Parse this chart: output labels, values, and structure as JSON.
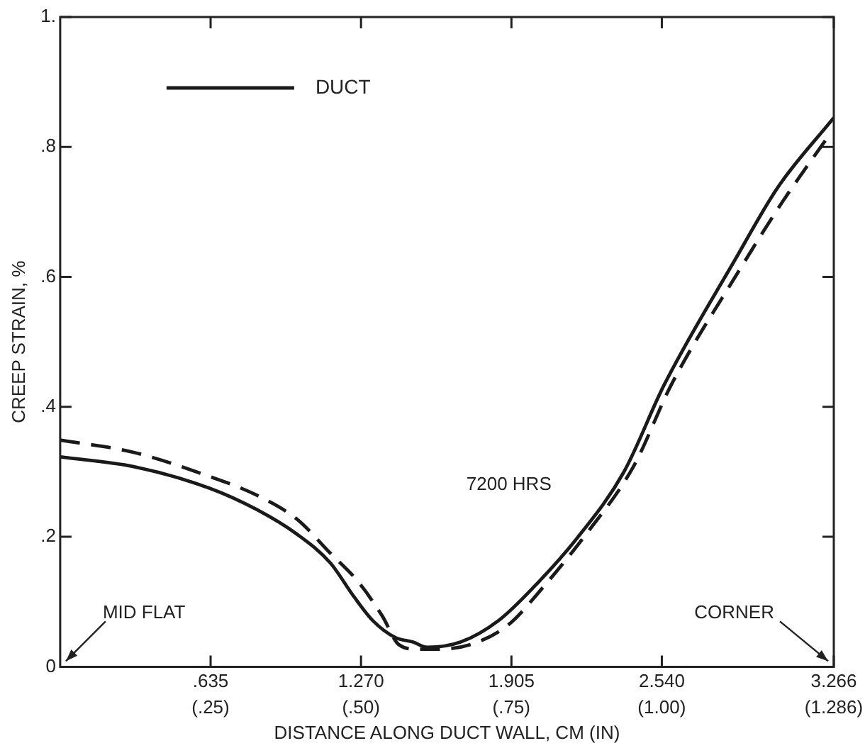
{
  "chart_data": {
    "type": "line",
    "xlabel": "DISTANCE ALONG DUCT WALL, CM (IN)",
    "ylabel": "CREEP STRAIN, %",
    "xlim": [
      0,
      3.266
    ],
    "ylim": [
      0,
      1
    ],
    "xticks": [
      {
        "value": 0.635,
        "label": ".635"
      },
      {
        "value": 1.27,
        "label": "1.270"
      },
      {
        "value": 1.905,
        "label": "1.905"
      },
      {
        "value": 2.54,
        "label": "2.540"
      },
      {
        "value": 3.266,
        "label": "3.266"
      }
    ],
    "x2lim": [
      0,
      1.286
    ],
    "x2ticks": [
      {
        "value": 0.25,
        "label": "(.25)"
      },
      {
        "value": 0.5,
        "label": "(.50)"
      },
      {
        "value": 0.75,
        "label": "(.75)"
      },
      {
        "value": 1,
        "label": "(1.00)"
      },
      {
        "value": 1.286,
        "label": "(1.286)"
      }
    ],
    "yticks": [
      0,
      {
        "value": 0.2,
        "label": ".2"
      },
      {
        "value": 0.4,
        "label": ".4"
      },
      {
        "value": 0.6,
        "label": ".6"
      },
      {
        "value": 0.8,
        "label": ".8"
      },
      {
        "value": 1,
        "label": "1."
      }
    ],
    "grid": false,
    "legend": "top left",
    "marker": "none",
    "annotations": [
      "MID FLAT",
      "CORNER",
      "7200 HRS"
    ],
    "series": [
      {
        "name": "DUCT",
        "color": "#1a1a1a",
        "line_style": "solid",
        "x": [
          0,
          0.31,
          0.63,
          0.83,
          1.0,
          1.14,
          1.24,
          1.32,
          1.415,
          1.49,
          1.55,
          1.69,
          1.85,
          2.0,
          2.18,
          2.38,
          2.55,
          2.85,
          3.03,
          3.266
        ],
        "values": [
          0.323,
          0.308,
          0.275,
          0.242,
          0.204,
          0.16,
          0.108,
          0.071,
          0.045,
          0.038,
          0.03,
          0.038,
          0.071,
          0.123,
          0.197,
          0.3,
          0.434,
          0.627,
          0.738,
          0.845
        ]
      },
      {
        "color": "#1a1a1a",
        "line_style": "dashed",
        "x": [
          0,
          0.31,
          0.63,
          0.83,
          1.0,
          1.14,
          1.26,
          1.36,
          1.43,
          1.51,
          1.59,
          1.73,
          1.89,
          2.04,
          2.22,
          2.42,
          2.58,
          2.87,
          3.05,
          3.24
        ],
        "values": [
          0.349,
          0.33,
          0.293,
          0.264,
          0.227,
          0.175,
          0.13,
          0.078,
          0.034,
          0.027,
          0.027,
          0.034,
          0.064,
          0.123,
          0.204,
          0.308,
          0.434,
          0.612,
          0.716,
          0.815
        ]
      }
    ]
  }
}
